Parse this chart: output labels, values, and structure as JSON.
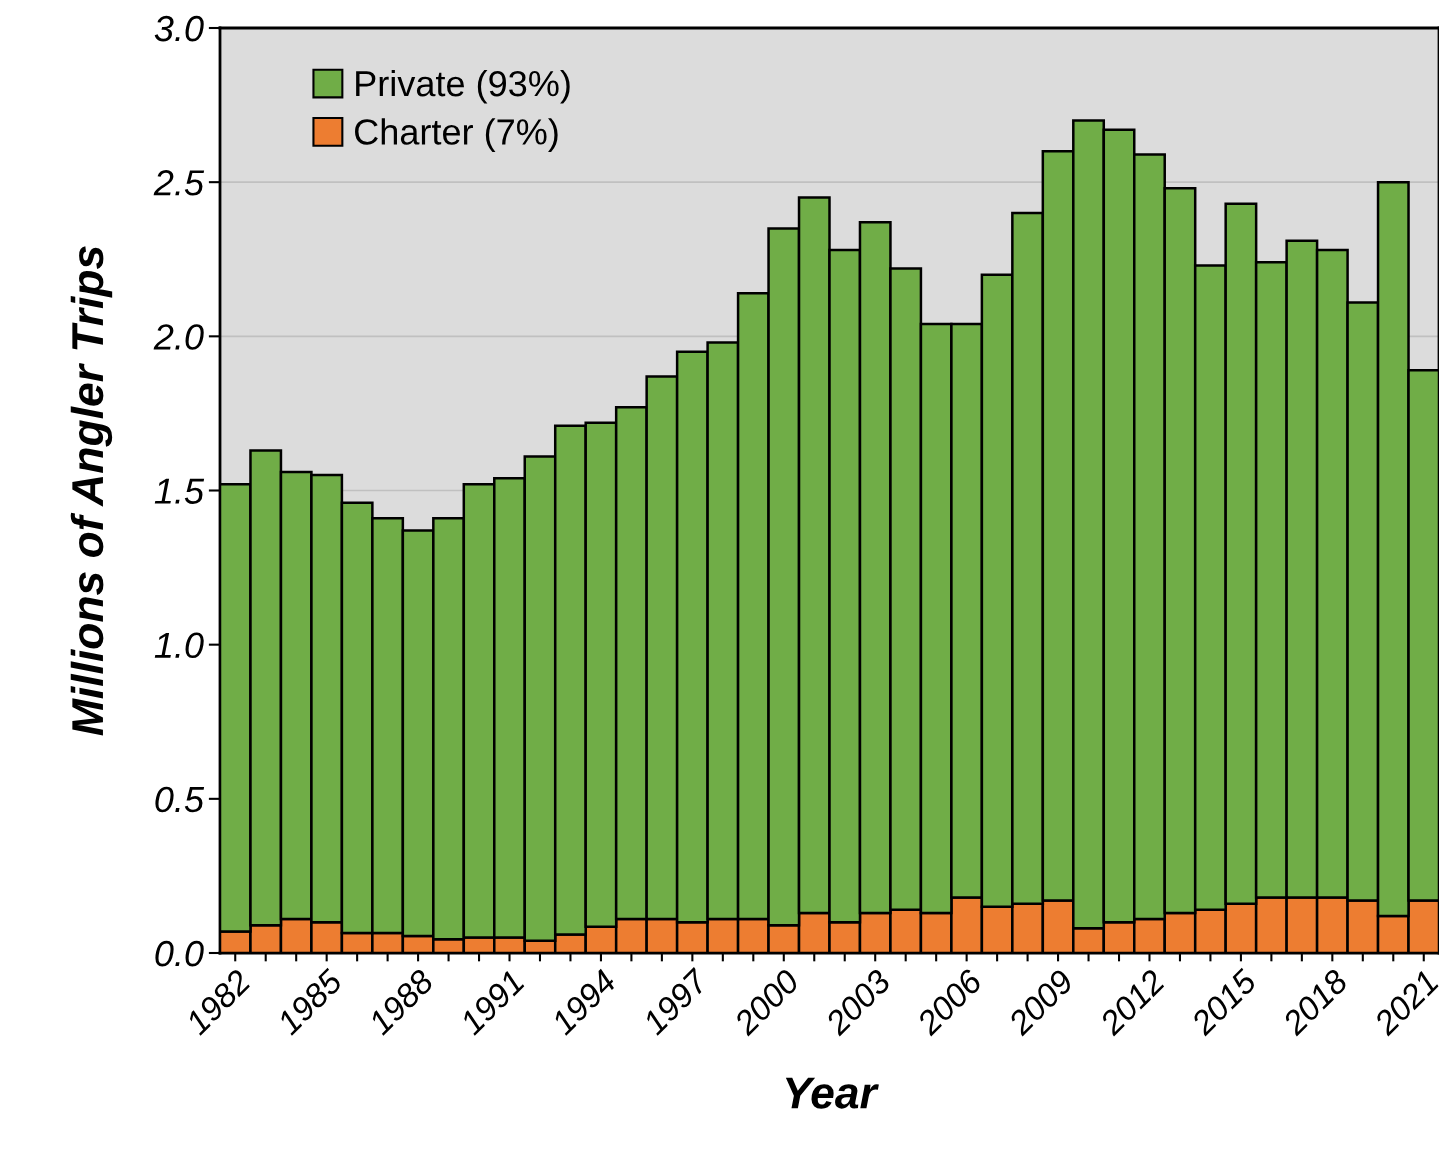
{
  "chart_data": {
    "type": "bar",
    "stacked": true,
    "xlabel": "Year",
    "ylabel": "Millions of Angler Trips",
    "categories": [
      "1982",
      null,
      null,
      "1985",
      null,
      null,
      "1988",
      null,
      null,
      "1991",
      null,
      null,
      "1994",
      null,
      null,
      "1997",
      null,
      null,
      "2000",
      null,
      null,
      "2003",
      null,
      null,
      "2006",
      null,
      null,
      "2009",
      null,
      null,
      "2012",
      null,
      null,
      "2015",
      null,
      null,
      "2018",
      null,
      null,
      "2021"
    ],
    "series": [
      {
        "name": "Charter (7%)",
        "color": "#ed7d31",
        "values": [
          0.07,
          0.09,
          0.11,
          0.1,
          0.065,
          0.065,
          0.055,
          0.045,
          0.05,
          0.05,
          0.04,
          0.06,
          0.085,
          0.11,
          0.11,
          0.1,
          0.11,
          0.11,
          0.09,
          0.13,
          0.1,
          0.13,
          0.14,
          0.13,
          0.18,
          0.15,
          0.16,
          0.17,
          0.08,
          0.1,
          0.11,
          0.13,
          0.14,
          0.16,
          0.18,
          0.18,
          0.18,
          0.17,
          0.12,
          0.17
        ]
      },
      {
        "name": "Private (93%)",
        "color": "#70ad47",
        "values": [
          1.45,
          1.54,
          1.45,
          1.45,
          1.395,
          1.345,
          1.315,
          1.365,
          1.47,
          1.49,
          1.57,
          1.65,
          1.635,
          1.66,
          1.76,
          1.85,
          1.87,
          2.03,
          2.26,
          2.32,
          2.18,
          2.24,
          2.08,
          1.91,
          1.86,
          2.05,
          2.24,
          2.43,
          2.62,
          2.57,
          2.48,
          2.35,
          2.09,
          2.27,
          2.06,
          2.13,
          2.1,
          1.94,
          2.38,
          1.72
        ]
      }
    ],
    "ylim": [
      0,
      3.0
    ],
    "yticks": [
      {
        "value": 0,
        "label": "0.0"
      },
      {
        "value": 0.5,
        "label": "0.5"
      },
      {
        "value": 1,
        "label": "1.0"
      },
      {
        "value": 1.5,
        "label": "1.5"
      },
      {
        "value": 2,
        "label": "2.0"
      },
      {
        "value": 2.5,
        "label": "2.5"
      },
      {
        "value": 3,
        "label": "3.0"
      }
    ],
    "grid": "y",
    "legend": "top left"
  }
}
